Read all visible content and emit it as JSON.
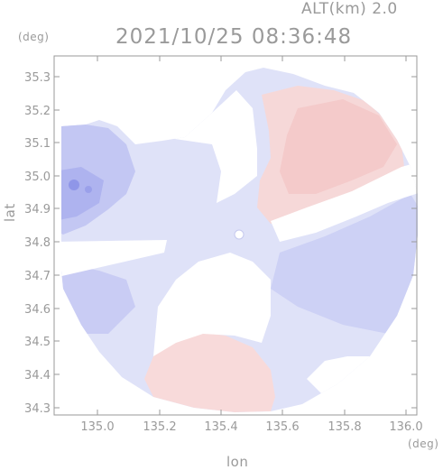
{
  "header": {
    "altitude_label": "ALT(km) 2.0",
    "datetime": "2021/10/25 08:36:48"
  },
  "axes": {
    "y_unit": "(deg)",
    "x_unit": "(deg)",
    "ylabel": "lat",
    "xlabel": "lon",
    "y_ticks": [
      "35.3",
      "35.2",
      "35.1",
      "35.0",
      "34.9",
      "34.8",
      "34.7",
      "34.6",
      "34.5",
      "34.4",
      "34.3"
    ],
    "x_ticks": [
      "135.0",
      "135.2",
      "135.4",
      "135.6",
      "135.8",
      "136.0"
    ]
  },
  "colors": {
    "approaching": "#b9bdf3",
    "receding": "#f6c7c7",
    "neutral_blue": "#dfe2f8",
    "axis": "#9a9a9a"
  }
}
